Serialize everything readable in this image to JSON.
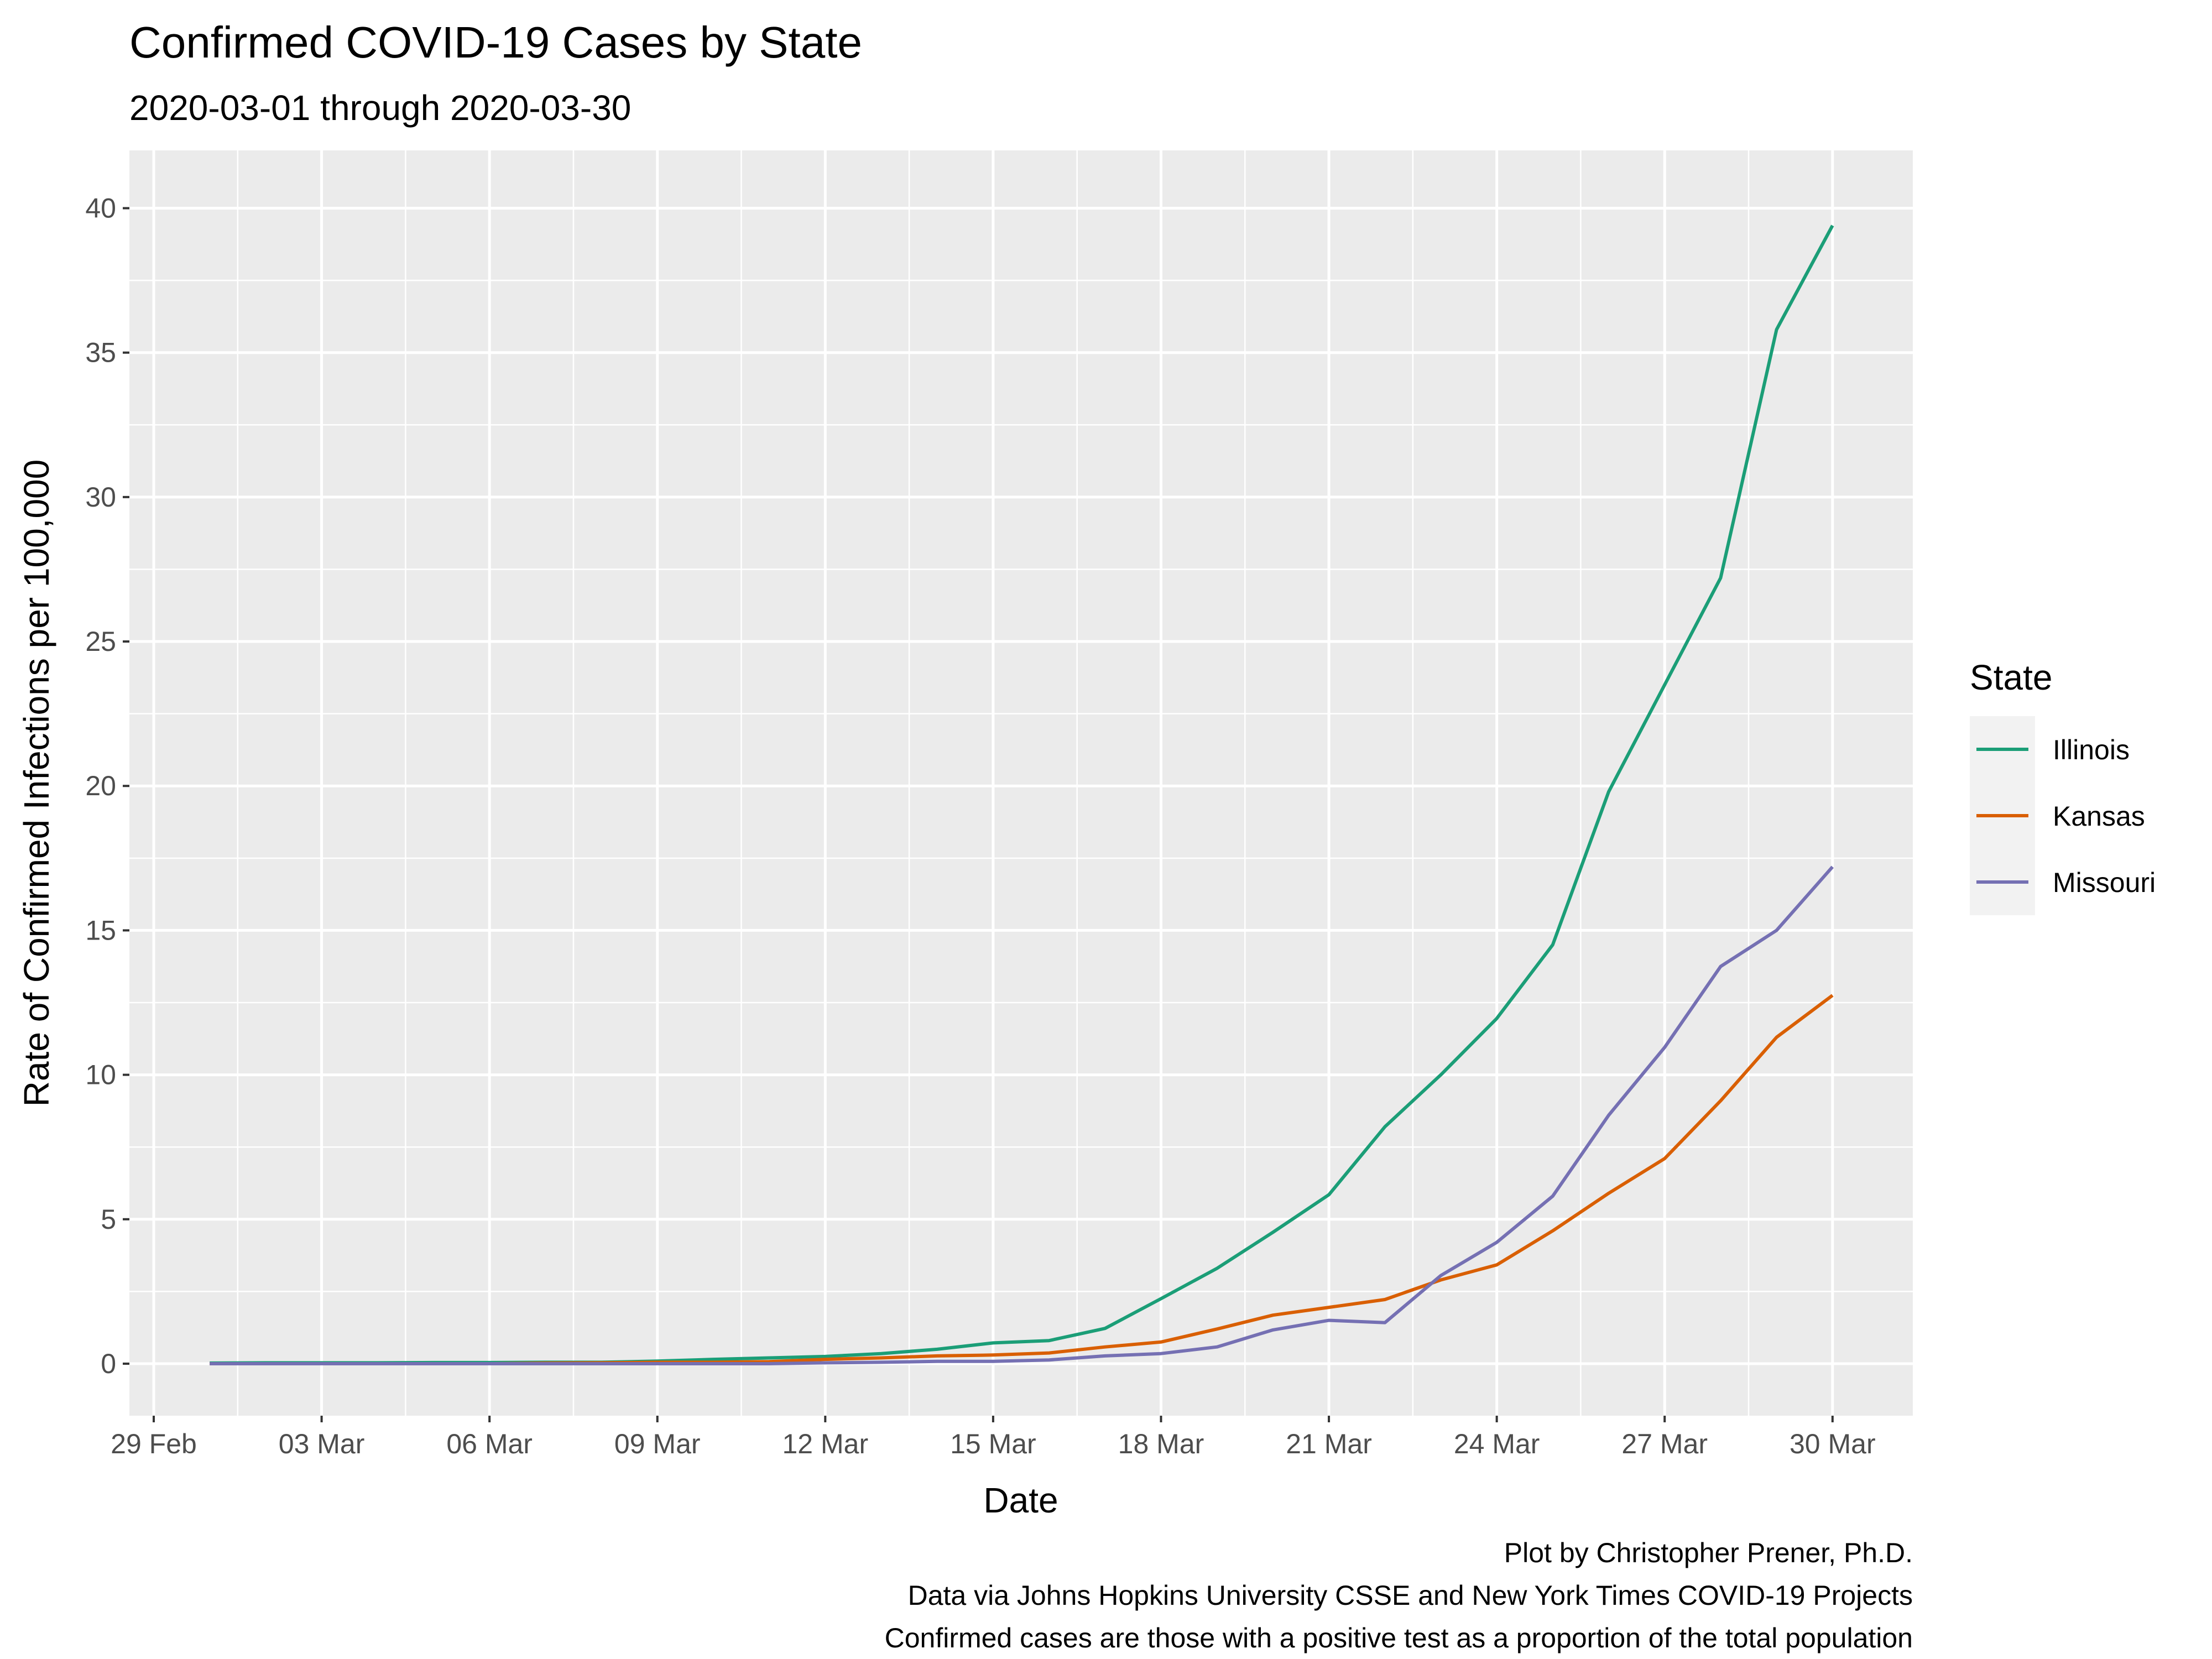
{
  "chart_data": {
    "type": "line",
    "title": "Confirmed COVID-19 Cases by State",
    "subtitle": "2020-03-01 through 2020-03-30",
    "xlabel": "Date",
    "ylabel": "Rate of Confirmed Infections per 100,000",
    "x_ticks": [
      "29 Feb",
      "03 Mar",
      "06 Mar",
      "09 Mar",
      "12 Mar",
      "15 Mar",
      "18 Mar",
      "21 Mar",
      "24 Mar",
      "27 Mar",
      "30 Mar"
    ],
    "y_ticks": [
      "0",
      "5",
      "10",
      "15",
      "20",
      "25",
      "30",
      "35",
      "40"
    ],
    "xlim": [
      "2020-02-29",
      "2020-03-31"
    ],
    "ylim": [
      -1.8,
      42
    ],
    "grid": true,
    "legend": {
      "title": "State",
      "position": "right"
    },
    "x": [
      "2020-03-01",
      "2020-03-02",
      "2020-03-03",
      "2020-03-04",
      "2020-03-05",
      "2020-03-06",
      "2020-03-07",
      "2020-03-08",
      "2020-03-09",
      "2020-03-10",
      "2020-03-11",
      "2020-03-12",
      "2020-03-13",
      "2020-03-14",
      "2020-03-15",
      "2020-03-16",
      "2020-03-17",
      "2020-03-18",
      "2020-03-19",
      "2020-03-20",
      "2020-03-21",
      "2020-03-22",
      "2020-03-23",
      "2020-03-24",
      "2020-03-25",
      "2020-03-26",
      "2020-03-27",
      "2020-03-28",
      "2020-03-29",
      "2020-03-30"
    ],
    "series": [
      {
        "name": "Illinois",
        "color": "#1b9e77",
        "values": [
          0.02,
          0.03,
          0.03,
          0.03,
          0.04,
          0.04,
          0.05,
          0.05,
          0.09,
          0.15,
          0.2,
          0.25,
          0.35,
          0.5,
          0.72,
          0.8,
          1.22,
          2.25,
          3.3,
          4.55,
          5.85,
          8.2,
          10.0,
          11.95,
          14.5,
          19.8,
          23.5,
          27.2,
          35.8,
          39.4
        ]
      },
      {
        "name": "Kansas",
        "color": "#d95f02",
        "values": [
          0.0,
          0.0,
          0.0,
          0.0,
          0.0,
          0.0,
          0.02,
          0.03,
          0.05,
          0.05,
          0.07,
          0.15,
          0.2,
          0.27,
          0.3,
          0.37,
          0.58,
          0.75,
          1.2,
          1.68,
          1.95,
          2.22,
          2.9,
          3.42,
          4.6,
          5.9,
          7.1,
          9.1,
          11.3,
          12.75
        ]
      },
      {
        "name": "Missouri",
        "color": "#7570b3",
        "values": [
          0.0,
          0.0,
          0.0,
          0.0,
          0.0,
          0.0,
          0.0,
          0.0,
          0.0,
          0.0,
          0.0,
          0.03,
          0.05,
          0.08,
          0.08,
          0.13,
          0.27,
          0.35,
          0.58,
          1.17,
          1.5,
          1.42,
          3.05,
          4.2,
          5.8,
          8.6,
          10.95,
          13.75,
          15.0,
          17.2
        ]
      }
    ],
    "caption": [
      "Plot by Christopher Prener, Ph.D.",
      "Data via Johns Hopkins University CSSE and New York Times COVID-19 Projects",
      "Confirmed cases are those with a positive test as a proportion of the total population"
    ]
  }
}
